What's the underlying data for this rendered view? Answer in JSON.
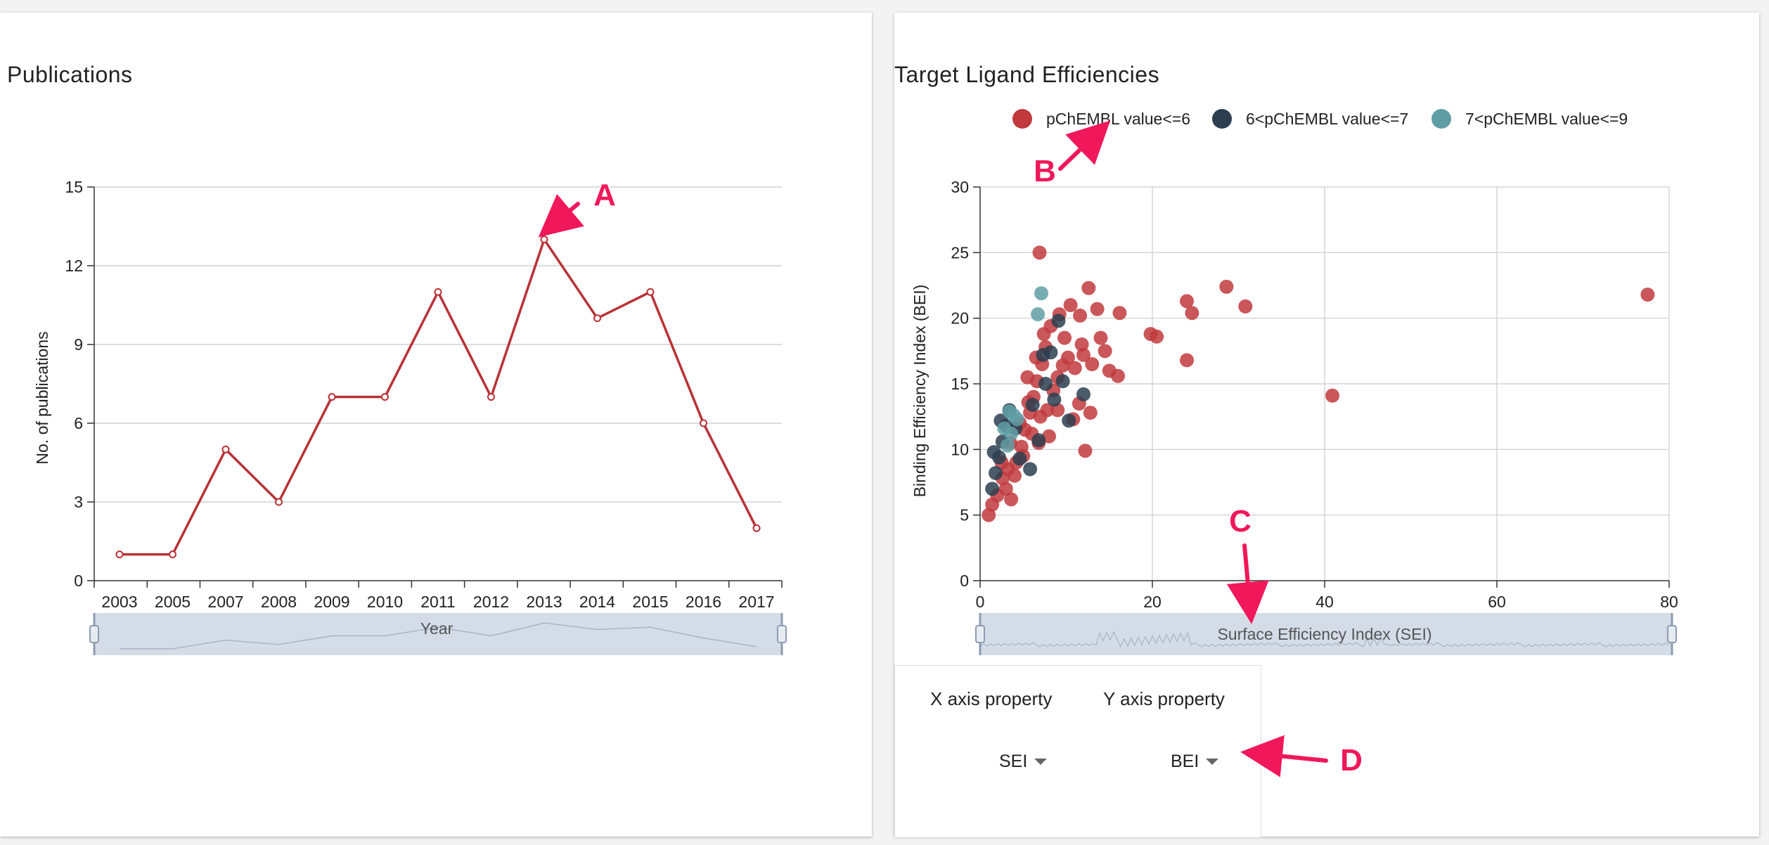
{
  "publications_panel": {
    "title": "Publications"
  },
  "ligand_panel": {
    "title": "Target Ligand Efficiencies"
  },
  "controls": {
    "x_label": "X axis property",
    "y_label": "Y axis property",
    "x_value": "SEI",
    "y_value": "BEI"
  },
  "annotations": [
    "A",
    "B",
    "C",
    "D"
  ],
  "colors": {
    "line": "#b83236",
    "low": "#c1393d",
    "mid": "#2c3e50",
    "high": "#5f9ea5",
    "accent": "#f0185a"
  },
  "chart_data": [
    {
      "type": "line",
      "title": "",
      "xlabel": "Year",
      "ylabel": "No. of publications",
      "categories": [
        "2003",
        "2005",
        "2007",
        "2008",
        "2009",
        "2010",
        "2011",
        "2012",
        "2013",
        "2014",
        "2015",
        "2016",
        "2017"
      ],
      "values": [
        1,
        1,
        5,
        3,
        7,
        7,
        11,
        7,
        13,
        10,
        11,
        6,
        2
      ],
      "ylim": [
        0,
        15
      ],
      "yticks": [
        0,
        3,
        6,
        9,
        12,
        15
      ],
      "grid": "horizontal"
    },
    {
      "type": "scatter",
      "title": "",
      "xlabel": "Surface Efficiency Index (SEI)",
      "ylabel": "Binding Efficiency Index (BEI)",
      "xlim": [
        0,
        80
      ],
      "ylim": [
        0,
        30
      ],
      "xticks": [
        0,
        20,
        40,
        60,
        80
      ],
      "yticks": [
        0,
        5,
        10,
        15,
        20,
        25,
        30
      ],
      "grid": "both",
      "legend_position": "top",
      "series": [
        {
          "name": "pChEMBL value<=6",
          "color": "#c1393d",
          "points": [
            [
              1.0,
              5.0
            ],
            [
              1.4,
              5.8
            ],
            [
              2.0,
              6.5
            ],
            [
              2.6,
              7.8
            ],
            [
              3.2,
              8.5
            ],
            [
              3.6,
              6.2
            ],
            [
              4.2,
              9.0
            ],
            [
              4.8,
              10.2
            ],
            [
              5.2,
              11.5
            ],
            [
              5.8,
              12.8
            ],
            [
              6.2,
              14.0
            ],
            [
              6.6,
              15.2
            ],
            [
              7.2,
              16.5
            ],
            [
              7.6,
              17.8
            ],
            [
              4.6,
              12.0
            ],
            [
              5.6,
              13.6
            ],
            [
              6.8,
              10.5
            ],
            [
              7.8,
              13.0
            ],
            [
              8.5,
              14.5
            ],
            [
              9.0,
              15.5
            ],
            [
              9.6,
              16.4
            ],
            [
              10.2,
              17.0
            ],
            [
              11.0,
              16.2
            ],
            [
              12.0,
              17.2
            ],
            [
              13.0,
              16.5
            ],
            [
              14.0,
              18.5
            ],
            [
              15.0,
              16.0
            ],
            [
              16.0,
              15.6
            ],
            [
              10.8,
              12.3
            ],
            [
              12.2,
              9.9
            ],
            [
              11.5,
              13.5
            ],
            [
              12.8,
              12.8
            ],
            [
              8.2,
              19.4
            ],
            [
              9.2,
              20.3
            ],
            [
              10.5,
              21.0
            ],
            [
              11.6,
              20.2
            ],
            [
              12.6,
              22.3
            ],
            [
              13.6,
              20.7
            ],
            [
              16.2,
              20.4
            ],
            [
              6.9,
              25.0
            ],
            [
              19.8,
              18.8
            ],
            [
              20.5,
              18.6
            ],
            [
              24.0,
              21.3
            ],
            [
              24.6,
              20.4
            ],
            [
              24.0,
              16.8
            ],
            [
              28.6,
              22.4
            ],
            [
              30.8,
              20.9
            ],
            [
              40.9,
              14.1
            ],
            [
              77.5,
              21.8
            ],
            [
              3.0,
              7.0
            ],
            [
              4.0,
              8.0
            ],
            [
              5.0,
              9.5
            ],
            [
              6.0,
              11.2
            ],
            [
              7.0,
              12.5
            ],
            [
              8.0,
              11.0
            ],
            [
              9.0,
              13.0
            ],
            [
              2.5,
              9.0
            ],
            [
              3.5,
              10.5
            ],
            [
              5.5,
              15.5
            ],
            [
              6.5,
              17.0
            ],
            [
              7.4,
              18.8
            ],
            [
              9.8,
              18.5
            ],
            [
              11.8,
              18.0
            ],
            [
              14.5,
              17.5
            ]
          ]
        },
        {
          "name": "6<pChEMBL value<=7",
          "color": "#2c3e50",
          "points": [
            [
              1.4,
              7.0
            ],
            [
              1.8,
              8.2
            ],
            [
              2.2,
              9.4
            ],
            [
              2.6,
              10.6
            ],
            [
              3.0,
              11.8
            ],
            [
              3.4,
              13.0
            ],
            [
              1.6,
              9.8
            ],
            [
              2.4,
              12.2
            ],
            [
              5.8,
              8.5
            ],
            [
              6.8,
              10.7
            ],
            [
              6.1,
              13.4
            ],
            [
              7.6,
              15.0
            ],
            [
              8.2,
              17.4
            ],
            [
              9.1,
              19.8
            ],
            [
              7.3,
              17.2
            ],
            [
              9.6,
              15.2
            ],
            [
              10.3,
              12.2
            ],
            [
              12.0,
              14.2
            ],
            [
              8.6,
              13.8
            ],
            [
              4.1,
              11.6
            ],
            [
              4.6,
              9.3
            ]
          ]
        },
        {
          "name": "7<pChEMBL value<=9",
          "color": "#5f9ea5",
          "points": [
            [
              7.1,
              21.9
            ],
            [
              6.7,
              20.3
            ],
            [
              3.4,
              12.9
            ],
            [
              3.9,
              12.6
            ],
            [
              3.2,
              10.3
            ],
            [
              3.6,
              11.2
            ],
            [
              4.3,
              12.3
            ],
            [
              2.8,
              11.6
            ]
          ]
        }
      ]
    }
  ]
}
